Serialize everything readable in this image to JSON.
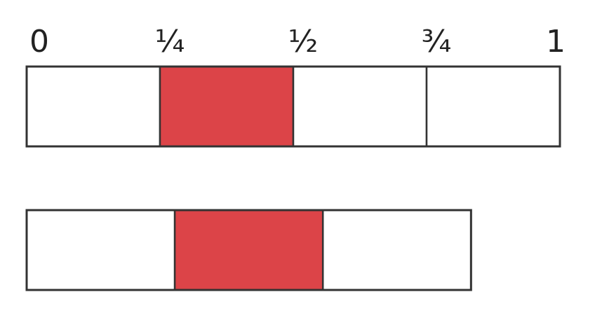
{
  "scale_labels": [
    "0",
    "¼",
    "½",
    "¾",
    "1"
  ],
  "colors": {
    "shaded": "#dc4448",
    "unshaded": "#ffffff",
    "stroke": "#333333"
  },
  "bars": [
    {
      "name": "whole-bar",
      "length": 1,
      "parts": 4,
      "shaded_parts": [
        1
      ]
    },
    {
      "name": "partial-bar",
      "length": 0.8333,
      "parts": 3,
      "shaded_parts": [
        1
      ]
    }
  ]
}
